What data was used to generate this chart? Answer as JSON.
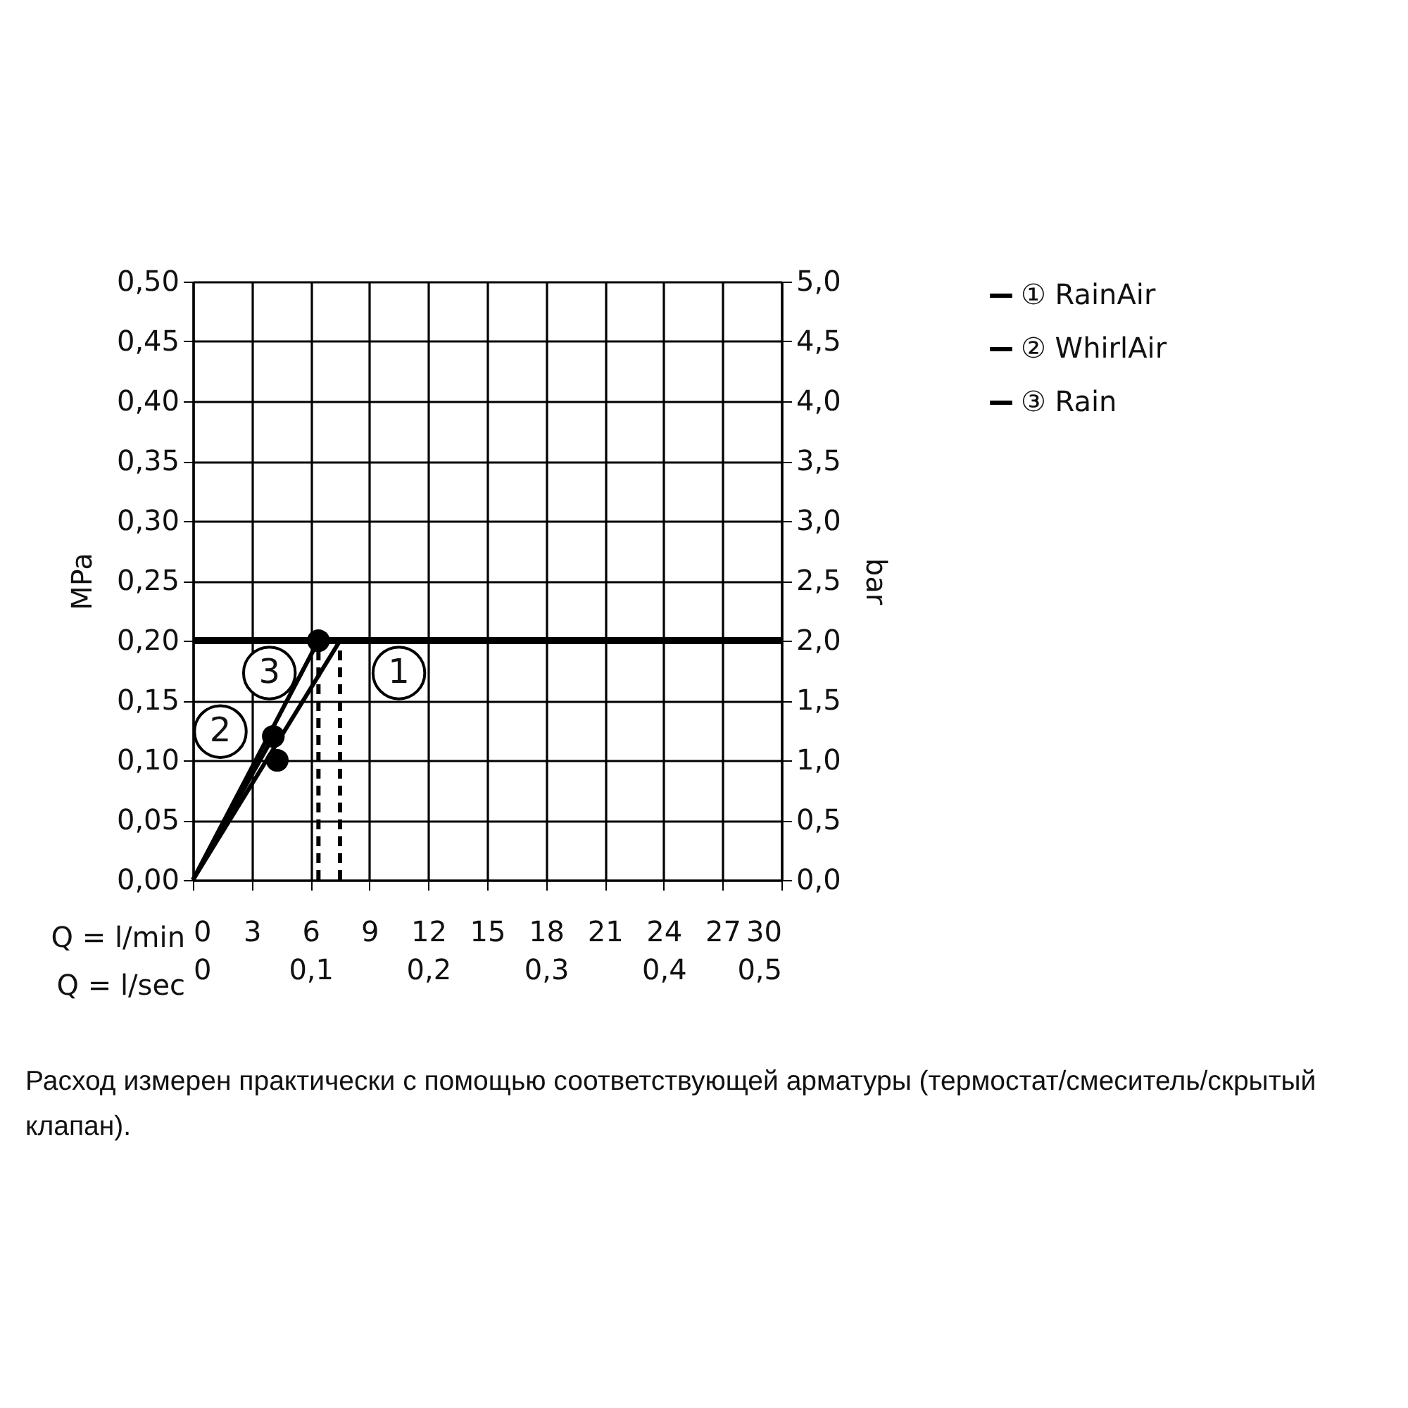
{
  "chart_data": {
    "type": "line",
    "xlabel": "Q = l/min",
    "x2label": "Q = l/sec",
    "ylabel": "MPa",
    "y2label": "bar",
    "xlim": [
      0,
      30
    ],
    "xticks": [
      0,
      3,
      6,
      9,
      12,
      15,
      18,
      21,
      24,
      27,
      30
    ],
    "x2lim": [
      0,
      0.5
    ],
    "x2ticks": [
      0,
      {
        "value": 0.1,
        "label": "0,1"
      },
      {
        "value": 0.2,
        "label": "0,2"
      },
      {
        "value": 0.3,
        "label": "0,3"
      },
      {
        "value": 0.4,
        "label": "0,4"
      },
      {
        "value": 0.5,
        "label": "0,5"
      }
    ],
    "ylim": [
      0,
      0.5
    ],
    "yticks": [
      {
        "value": 0,
        "label": "0,00"
      },
      {
        "value": 0.05,
        "label": "0,05"
      },
      {
        "value": 0.1,
        "label": "0,10"
      },
      {
        "value": 0.15,
        "label": "0,15"
      },
      {
        "value": 0.2,
        "label": "0,20"
      },
      {
        "value": 0.25,
        "label": "0,25"
      },
      {
        "value": 0.3,
        "label": "0,30"
      },
      {
        "value": 0.35,
        "label": "0,35"
      },
      {
        "value": 0.4,
        "label": "0,40"
      },
      {
        "value": 0.45,
        "label": "0,45"
      },
      {
        "value": 0.5,
        "label": "0,50"
      }
    ],
    "y2lim": [
      0,
      5
    ],
    "y2ticks": [
      {
        "value": 0,
        "label": "0,0"
      },
      {
        "value": 0.5,
        "label": "0,5"
      },
      {
        "value": 1,
        "label": "1,0"
      },
      {
        "value": 1.5,
        "label": "1,5"
      },
      {
        "value": 2,
        "label": "2,0"
      },
      {
        "value": 2.5,
        "label": "2,5"
      },
      {
        "value": 3,
        "label": "3,0"
      },
      {
        "value": 3.5,
        "label": "3,5"
      },
      {
        "value": 4,
        "label": "4,0"
      },
      {
        "value": 4.5,
        "label": "4,5"
      },
      {
        "value": 5,
        "label": "5,0"
      }
    ],
    "grid": true,
    "legend": "top right",
    "series": [
      {
        "name": "① RainAir",
        "color": "#000000",
        "x": [
          0,
          7.5
        ],
        "values": [
          0,
          0.2
        ]
      },
      {
        "name": "② WhirlAir",
        "color": "#000000",
        "x": [
          0,
          4.1
        ],
        "values": [
          0,
          0.12
        ]
      },
      {
        "name": "③ Rain",
        "color": "#000000",
        "x": [
          0,
          6.4
        ],
        "values": [
          0,
          0.2
        ]
      },
      {
        "type": "scatter",
        "color": "#000000",
        "marker": "circle",
        "x": [
          4.1,
          4.3,
          6.4
        ],
        "values": [
          0.12,
          0.1,
          0.2
        ]
      },
      {
        "color": "#000000",
        "line_style": "dashed",
        "x": [
          6.4,
          6.4
        ],
        "values": [
          0,
          0.2
        ]
      },
      {
        "color": "#000000",
        "line_style": "dashed",
        "x": [
          7.5,
          7.5
        ],
        "values": [
          0,
          0.2
        ]
      }
    ],
    "ref_lines": [
      {
        "axis": "y",
        "value": 0.2,
        "color": "#000000"
      }
    ],
    "annotations": [
      {
        "text": "1",
        "x": 10.5,
        "y": 0.173
      },
      {
        "text": "2",
        "x": 1.4,
        "y": 0.124
      },
      {
        "text": "3",
        "x": 3.9,
        "y": 0.173
      },
      "Расход измерен практически с помощью соответствующей арматуры (термостат/смеситель/скрытый клапан)."
    ]
  }
}
